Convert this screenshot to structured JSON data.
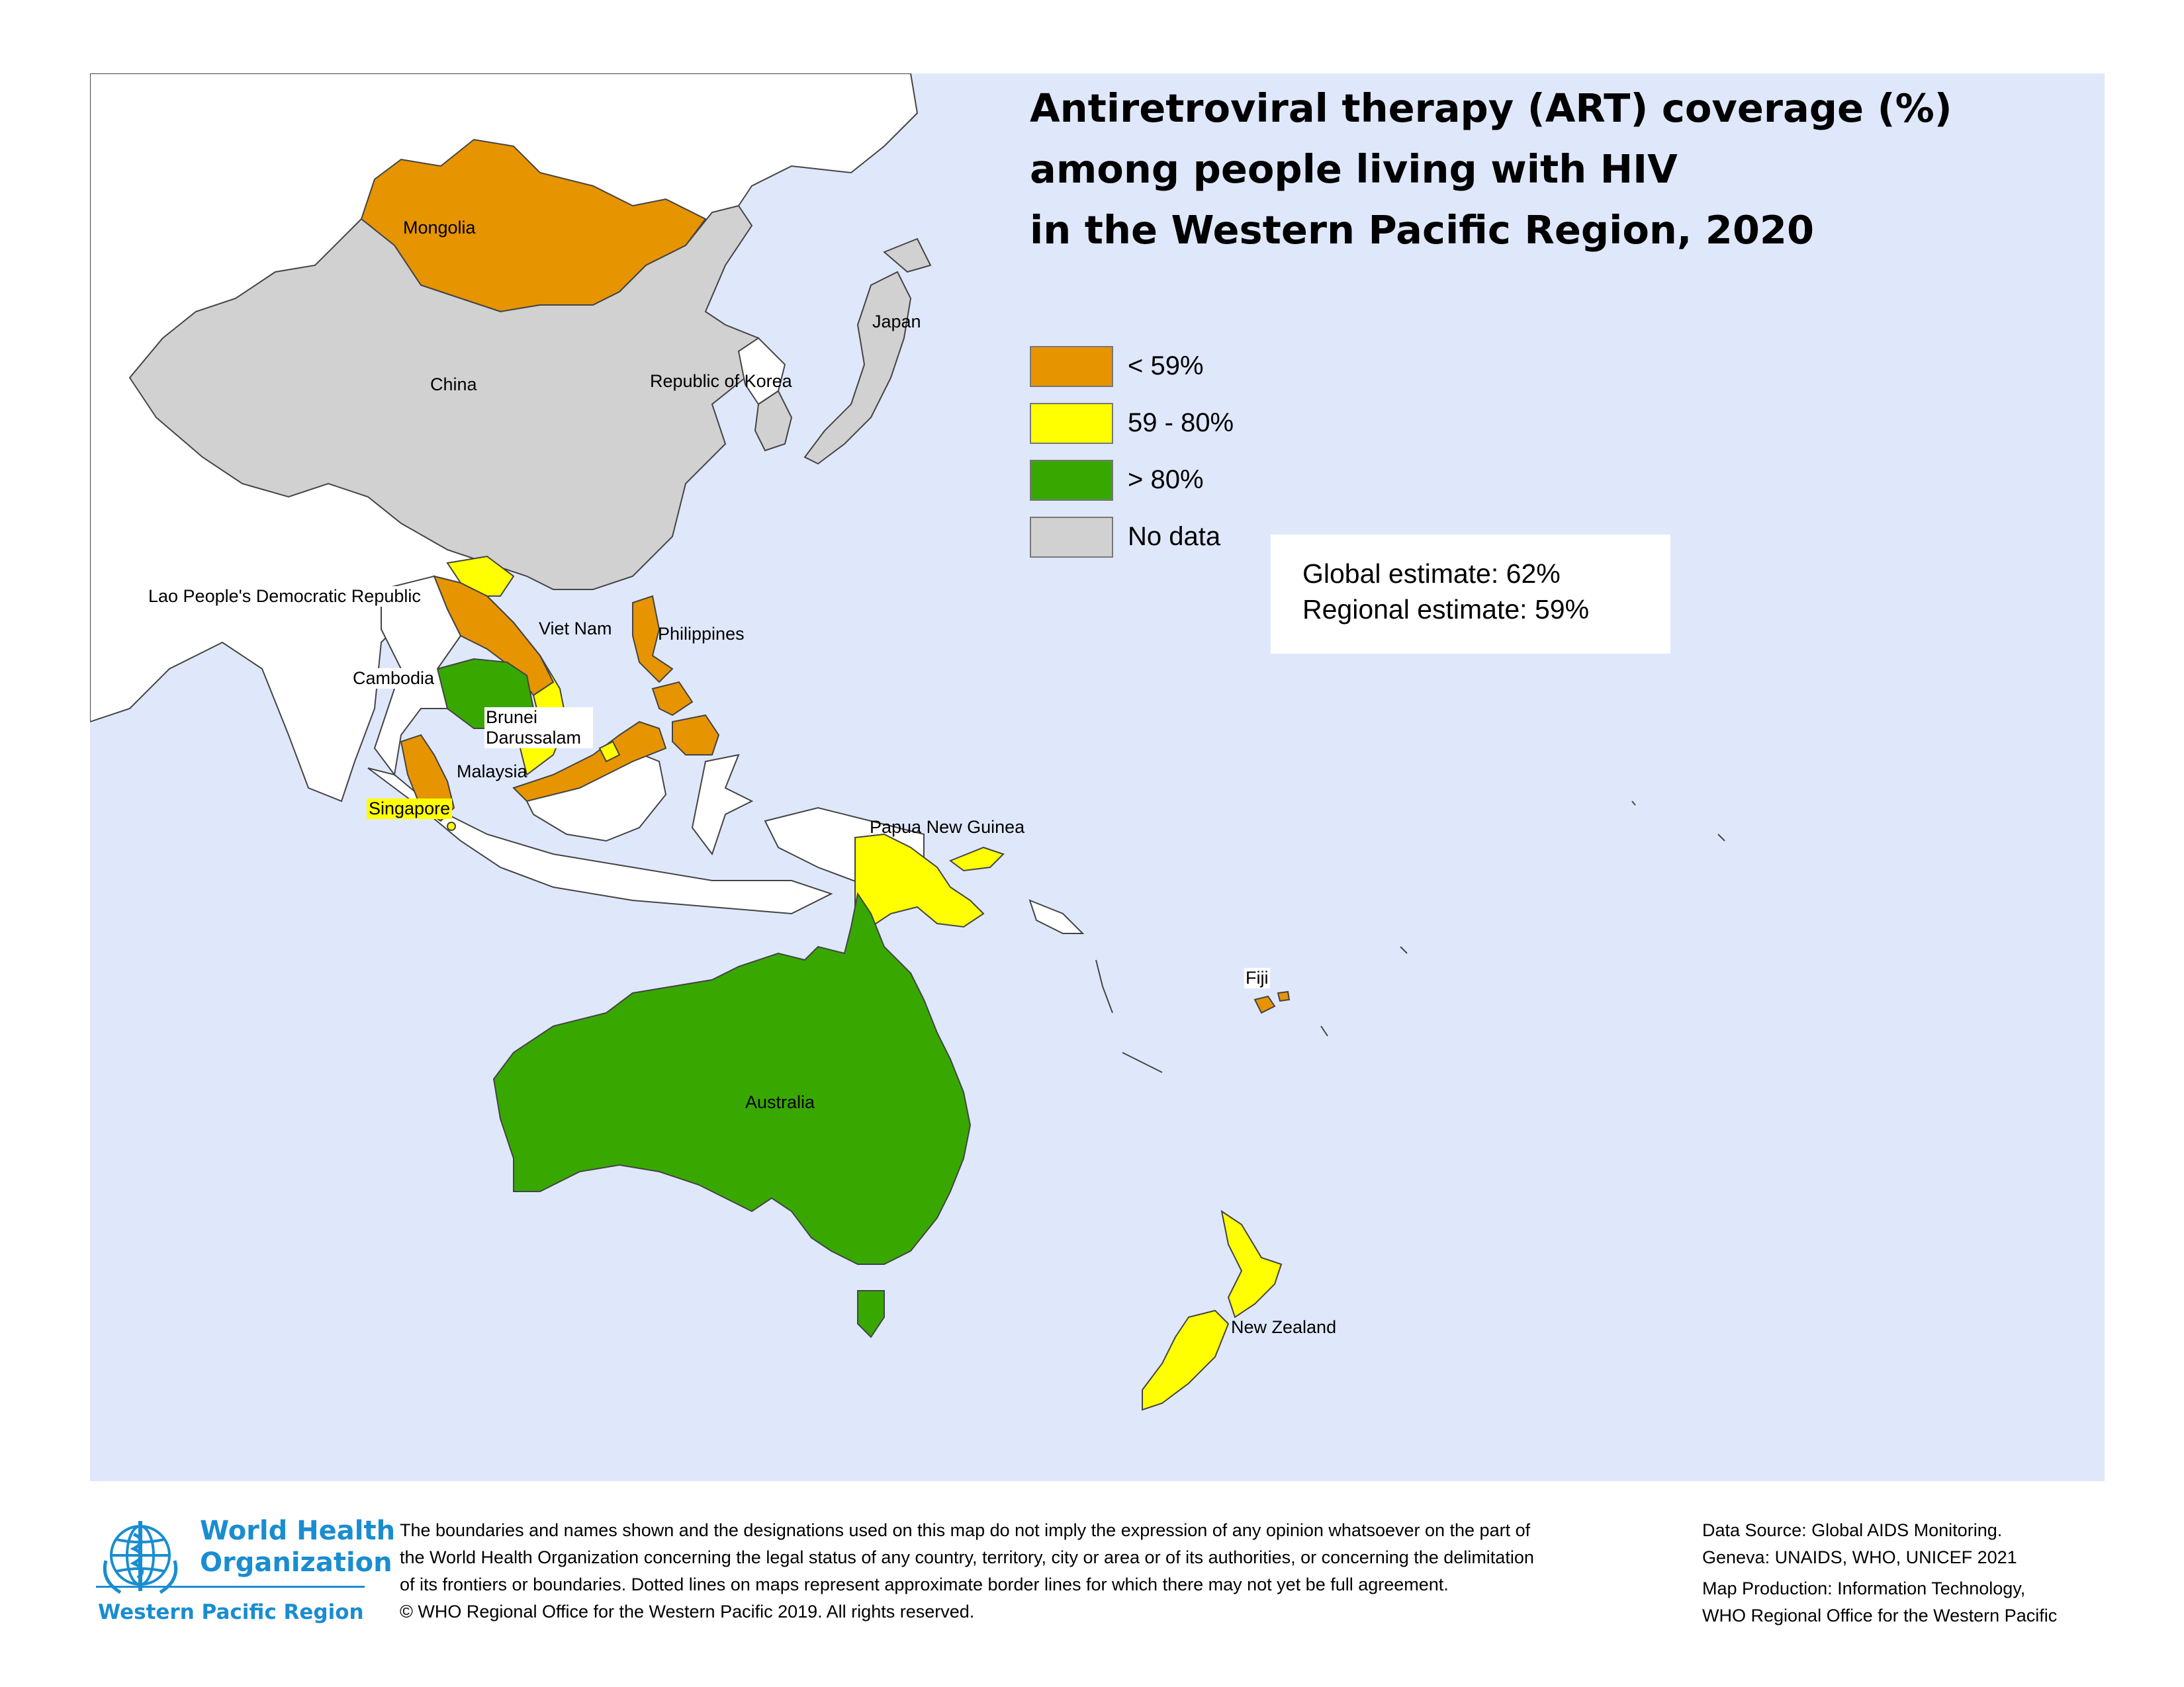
{
  "map": {
    "title_lines": [
      "Antiretroviral therapy (ART) coverage (%)",
      "among people living with HIV",
      "in the Western Pacific Region, 2020"
    ],
    "legend": [
      {
        "label": "< 59%",
        "color": "#e69400"
      },
      {
        "label": "59 - 80%",
        "color": "#ffff00"
      },
      {
        "label": "> 80%",
        "color": "#38a800"
      },
      {
        "label": "No data",
        "color": "#d1d1d1"
      }
    ],
    "estimates": {
      "global": "Global estimate: 62%",
      "regional": "Regional estimate: 59%"
    },
    "countries": {
      "mongolia": {
        "name": "Mongolia",
        "category": "< 59%"
      },
      "china": {
        "name": "China",
        "category": "No data"
      },
      "japan": {
        "name": "Japan",
        "category": "No data"
      },
      "korea": {
        "name": "Republic of Korea",
        "category": "No data"
      },
      "lao": {
        "name": "Lao People's Democratic Republic",
        "category": "< 59%"
      },
      "vietnam": {
        "name": "Viet Nam",
        "category": "59 - 80%"
      },
      "cambodia": {
        "name": "Cambodia",
        "category": "> 80%"
      },
      "philippines": {
        "name": "Philippines",
        "category": "< 59%"
      },
      "brunei": {
        "name": "Brunei Darussalam",
        "category": "59 - 80%"
      },
      "malaysia": {
        "name": "Malaysia",
        "category": "< 59%"
      },
      "singapore": {
        "name": "Singapore",
        "category": "59 - 80%"
      },
      "png": {
        "name": "Papua New Guinea",
        "category": "59 - 80%"
      },
      "fiji": {
        "name": "Fiji",
        "category": "< 59%"
      },
      "australia": {
        "name": "Australia",
        "category": "> 80%"
      },
      "nz": {
        "name": "New Zealand",
        "category": "59 - 80%"
      }
    },
    "colors": {
      "ocean": "#dfe8fb",
      "non_region_land": "#ffffff",
      "border": "#444444"
    }
  },
  "footer": {
    "org_line1": "World Health",
    "org_line2": "Organization",
    "org_region": "Western Pacific Region",
    "disclaimer": [
      "The boundaries and names shown and the designations used on this map do not imply the expression of any opinion whatsoever on the part of",
      "the World Health Organization concerning the legal status of any country, territory, city or area or of its authorities, or concerning the delimitation",
      "of its frontiers or boundaries.  Dotted lines on maps represent approximate border lines for which there may not yet be full agreement.",
      "© WHO Regional Office for the Western Pacific 2019. All rights reserved."
    ],
    "source": [
      "Data Source: Global AIDS Monitoring.",
      "Geneva: UNAIDS, WHO, UNICEF 2021",
      "Map Production:  Information Technology,",
      "WHO Regional Office for the Western Pacific"
    ],
    "brand_color": "#1a8dd0"
  }
}
